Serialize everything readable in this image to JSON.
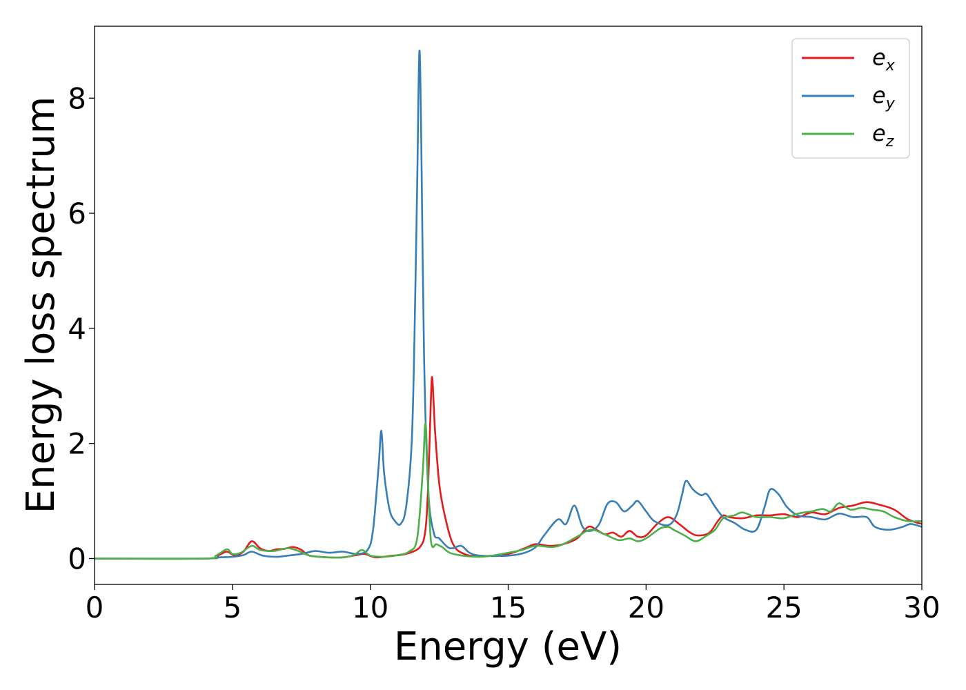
{
  "chart_data": {
    "type": "line",
    "title": "",
    "xlabel": "Energy (eV)",
    "ylabel": "Energy loss spectrum",
    "xlim": [
      0,
      30
    ],
    "ylim": [
      -0.45,
      9.25
    ],
    "xticks": [
      0,
      5,
      10,
      15,
      20,
      25,
      30
    ],
    "yticks": [
      0,
      2,
      4,
      6,
      8
    ],
    "grid": false,
    "legend_position": "top-right",
    "series": [
      {
        "name": "e_x",
        "label_base": "e",
        "label_sub": "x",
        "color": "#e41a1c",
        "points": [
          [
            0,
            0
          ],
          [
            4,
            0
          ],
          [
            4.5,
            0.06
          ],
          [
            4.8,
            0.12
          ],
          [
            5.1,
            0.05
          ],
          [
            5.4,
            0.12
          ],
          [
            5.7,
            0.3
          ],
          [
            6.0,
            0.18
          ],
          [
            6.3,
            0.13
          ],
          [
            6.6,
            0.16
          ],
          [
            6.9,
            0.17
          ],
          [
            7.2,
            0.2
          ],
          [
            7.5,
            0.15
          ],
          [
            7.8,
            0.05
          ],
          [
            8.5,
            0.02
          ],
          [
            9.0,
            0.02
          ],
          [
            9.5,
            0.06
          ],
          [
            9.8,
            0.08
          ],
          [
            10.2,
            0.02
          ],
          [
            10.8,
            0.05
          ],
          [
            11.3,
            0.08
          ],
          [
            11.8,
            0.2
          ],
          [
            12.0,
            0.5
          ],
          [
            12.1,
            1.3
          ],
          [
            12.2,
            2.8
          ],
          [
            12.25,
            3.12
          ],
          [
            12.35,
            2.2
          ],
          [
            12.5,
            1.3
          ],
          [
            12.7,
            0.75
          ],
          [
            13.0,
            0.25
          ],
          [
            13.4,
            0.08
          ],
          [
            14.0,
            0.04
          ],
          [
            15.0,
            0.08
          ],
          [
            15.6,
            0.18
          ],
          [
            16.0,
            0.25
          ],
          [
            16.5,
            0.22
          ],
          [
            17.0,
            0.25
          ],
          [
            17.5,
            0.35
          ],
          [
            17.9,
            0.55
          ],
          [
            18.2,
            0.5
          ],
          [
            18.5,
            0.42
          ],
          [
            18.8,
            0.45
          ],
          [
            19.1,
            0.38
          ],
          [
            19.4,
            0.48
          ],
          [
            19.7,
            0.38
          ],
          [
            20.0,
            0.4
          ],
          [
            20.4,
            0.6
          ],
          [
            20.8,
            0.72
          ],
          [
            21.2,
            0.6
          ],
          [
            21.6,
            0.45
          ],
          [
            21.9,
            0.4
          ],
          [
            22.3,
            0.45
          ],
          [
            22.6,
            0.65
          ],
          [
            22.8,
            0.75
          ],
          [
            23.0,
            0.72
          ],
          [
            23.5,
            0.7
          ],
          [
            24.0,
            0.75
          ],
          [
            24.5,
            0.75
          ],
          [
            25.0,
            0.77
          ],
          [
            25.5,
            0.72
          ],
          [
            26.0,
            0.8
          ],
          [
            26.5,
            0.77
          ],
          [
            27.0,
            0.88
          ],
          [
            27.5,
            0.92
          ],
          [
            28.0,
            0.98
          ],
          [
            28.5,
            0.93
          ],
          [
            29.0,
            0.85
          ],
          [
            29.5,
            0.68
          ],
          [
            30.0,
            0.6
          ]
        ]
      },
      {
        "name": "e_y",
        "label_base": "e",
        "label_sub": "y",
        "color": "#377eb8",
        "points": [
          [
            0,
            0
          ],
          [
            4,
            0
          ],
          [
            4.5,
            0.02
          ],
          [
            5.0,
            0.03
          ],
          [
            5.4,
            0.06
          ],
          [
            5.7,
            0.12
          ],
          [
            6.1,
            0.05
          ],
          [
            6.6,
            0.03
          ],
          [
            7.0,
            0.05
          ],
          [
            7.5,
            0.08
          ],
          [
            8.0,
            0.13
          ],
          [
            8.5,
            0.1
          ],
          [
            9.0,
            0.12
          ],
          [
            9.5,
            0.08
          ],
          [
            9.9,
            0.15
          ],
          [
            10.1,
            0.5
          ],
          [
            10.3,
            1.6
          ],
          [
            10.4,
            2.22
          ],
          [
            10.5,
            1.5
          ],
          [
            10.7,
            0.85
          ],
          [
            10.9,
            0.65
          ],
          [
            11.1,
            0.6
          ],
          [
            11.3,
            0.9
          ],
          [
            11.5,
            2.0
          ],
          [
            11.6,
            3.8
          ],
          [
            11.7,
            6.5
          ],
          [
            11.78,
            8.82
          ],
          [
            11.85,
            7.2
          ],
          [
            11.95,
            3.5
          ],
          [
            12.1,
            1.2
          ],
          [
            12.3,
            0.45
          ],
          [
            12.5,
            0.35
          ],
          [
            12.8,
            0.2
          ],
          [
            13.0,
            0.18
          ],
          [
            13.3,
            0.22
          ],
          [
            13.6,
            0.1
          ],
          [
            14.0,
            0.05
          ],
          [
            15.0,
            0.05
          ],
          [
            15.6,
            0.1
          ],
          [
            16.0,
            0.2
          ],
          [
            16.3,
            0.4
          ],
          [
            16.8,
            0.68
          ],
          [
            17.1,
            0.6
          ],
          [
            17.4,
            0.92
          ],
          [
            17.7,
            0.55
          ],
          [
            18.0,
            0.48
          ],
          [
            18.3,
            0.6
          ],
          [
            18.6,
            0.95
          ],
          [
            18.9,
            0.98
          ],
          [
            19.2,
            0.82
          ],
          [
            19.5,
            0.92
          ],
          [
            19.7,
            1.0
          ],
          [
            20.0,
            0.82
          ],
          [
            20.3,
            0.65
          ],
          [
            20.8,
            0.58
          ],
          [
            21.1,
            0.75
          ],
          [
            21.3,
            1.1
          ],
          [
            21.45,
            1.35
          ],
          [
            21.7,
            1.2
          ],
          [
            22.0,
            1.1
          ],
          [
            22.2,
            1.12
          ],
          [
            22.5,
            0.9
          ],
          [
            22.8,
            0.72
          ],
          [
            23.2,
            0.62
          ],
          [
            23.6,
            0.5
          ],
          [
            24.0,
            0.5
          ],
          [
            24.3,
            0.9
          ],
          [
            24.5,
            1.2
          ],
          [
            24.8,
            1.12
          ],
          [
            25.1,
            0.9
          ],
          [
            25.5,
            0.75
          ],
          [
            26.0,
            0.72
          ],
          [
            26.5,
            0.68
          ],
          [
            27.0,
            0.78
          ],
          [
            27.5,
            0.72
          ],
          [
            28.0,
            0.72
          ],
          [
            28.3,
            0.55
          ],
          [
            28.8,
            0.5
          ],
          [
            29.3,
            0.55
          ],
          [
            29.6,
            0.6
          ],
          [
            30.0,
            0.55
          ]
        ]
      },
      {
        "name": "e_z",
        "label_base": "e",
        "label_sub": "z",
        "color": "#4daf4a",
        "points": [
          [
            0,
            0
          ],
          [
            4,
            0
          ],
          [
            4.4,
            0.05
          ],
          [
            4.8,
            0.16
          ],
          [
            5.0,
            0.08
          ],
          [
            5.3,
            0.1
          ],
          [
            5.7,
            0.22
          ],
          [
            6.0,
            0.15
          ],
          [
            6.5,
            0.13
          ],
          [
            7.0,
            0.18
          ],
          [
            7.4,
            0.13
          ],
          [
            7.8,
            0.05
          ],
          [
            8.5,
            0.02
          ],
          [
            9.0,
            0.02
          ],
          [
            9.4,
            0.06
          ],
          [
            9.7,
            0.15
          ],
          [
            10.0,
            0.05
          ],
          [
            10.5,
            0.03
          ],
          [
            11.0,
            0.06
          ],
          [
            11.4,
            0.12
          ],
          [
            11.7,
            0.35
          ],
          [
            11.9,
            1.5
          ],
          [
            12.0,
            2.35
          ],
          [
            12.08,
            1.5
          ],
          [
            12.2,
            0.3
          ],
          [
            12.4,
            0.25
          ],
          [
            12.6,
            0.2
          ],
          [
            13.0,
            0.08
          ],
          [
            14.0,
            0.03
          ],
          [
            15.0,
            0.1
          ],
          [
            15.5,
            0.15
          ],
          [
            16.0,
            0.22
          ],
          [
            16.6,
            0.2
          ],
          [
            17.0,
            0.25
          ],
          [
            17.5,
            0.38
          ],
          [
            18.0,
            0.5
          ],
          [
            18.5,
            0.42
          ],
          [
            19.0,
            0.32
          ],
          [
            19.4,
            0.35
          ],
          [
            19.7,
            0.3
          ],
          [
            20.0,
            0.35
          ],
          [
            20.5,
            0.52
          ],
          [
            20.8,
            0.55
          ],
          [
            21.0,
            0.5
          ],
          [
            21.4,
            0.4
          ],
          [
            21.8,
            0.3
          ],
          [
            22.2,
            0.4
          ],
          [
            22.5,
            0.5
          ],
          [
            22.8,
            0.7
          ],
          [
            23.2,
            0.75
          ],
          [
            23.5,
            0.8
          ],
          [
            24.0,
            0.72
          ],
          [
            24.5,
            0.72
          ],
          [
            25.0,
            0.7
          ],
          [
            25.5,
            0.78
          ],
          [
            26.0,
            0.82
          ],
          [
            26.4,
            0.86
          ],
          [
            26.7,
            0.82
          ],
          [
            27.0,
            0.96
          ],
          [
            27.4,
            0.85
          ],
          [
            27.8,
            0.88
          ],
          [
            28.2,
            0.85
          ],
          [
            28.6,
            0.82
          ],
          [
            29.0,
            0.72
          ],
          [
            29.5,
            0.65
          ],
          [
            30.0,
            0.65
          ]
        ]
      }
    ]
  }
}
